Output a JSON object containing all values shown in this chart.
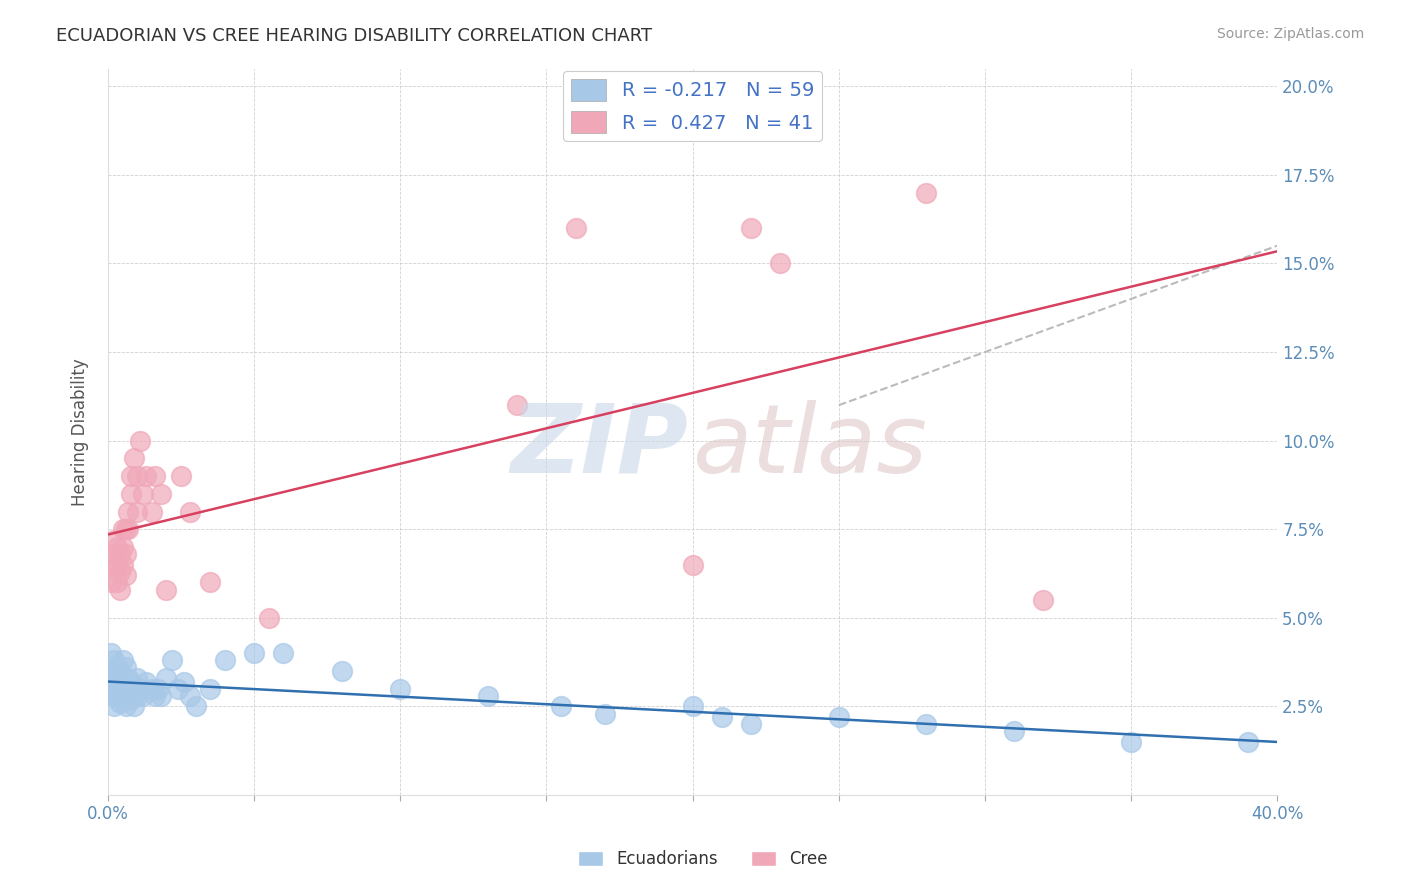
{
  "title": "ECUADORIAN VS CREE HEARING DISABILITY CORRELATION CHART",
  "source": "Source: ZipAtlas.com",
  "ylabel": "Hearing Disability",
  "xlim": [
    0.0,
    0.4
  ],
  "ylim": [
    0.0,
    0.205
  ],
  "xtick_positions": [
    0.0,
    0.05,
    0.1,
    0.15,
    0.2,
    0.25,
    0.3,
    0.35,
    0.4
  ],
  "ytick_positions": [
    0.0,
    0.025,
    0.05,
    0.075,
    0.1,
    0.125,
    0.15,
    0.175,
    0.2
  ],
  "yticklabels_right": [
    "",
    "2.5%",
    "5.0%",
    "7.5%",
    "10.0%",
    "12.5%",
    "15.0%",
    "17.5%",
    "20.0%"
  ],
  "ecuadorian_color": "#A8C8E8",
  "cree_color": "#F0A8B8",
  "ecuadorian_line_color": "#3070B0",
  "cree_line_color": "#D84060",
  "dashed_line_color": "#BBBBBB",
  "legend_label_ecu": "R = -0.217   N = 59",
  "legend_label_cree": "R =  0.427   N = 41",
  "ecuadorian_x": [
    0.001,
    0.001,
    0.001,
    0.002,
    0.002,
    0.002,
    0.002,
    0.003,
    0.003,
    0.003,
    0.003,
    0.004,
    0.004,
    0.004,
    0.004,
    0.005,
    0.005,
    0.005,
    0.006,
    0.006,
    0.006,
    0.007,
    0.007,
    0.008,
    0.008,
    0.009,
    0.009,
    0.01,
    0.01,
    0.011,
    0.012,
    0.013,
    0.015,
    0.016,
    0.017,
    0.018,
    0.02,
    0.022,
    0.024,
    0.026,
    0.028,
    0.03,
    0.035,
    0.04,
    0.05,
    0.06,
    0.08,
    0.1,
    0.13,
    0.155,
    0.17,
    0.2,
    0.21,
    0.22,
    0.25,
    0.28,
    0.31,
    0.35,
    0.39
  ],
  "ecuadorian_y": [
    0.035,
    0.04,
    0.032,
    0.038,
    0.033,
    0.028,
    0.025,
    0.036,
    0.03,
    0.028,
    0.032,
    0.035,
    0.03,
    0.026,
    0.033,
    0.038,
    0.032,
    0.028,
    0.036,
    0.03,
    0.025,
    0.033,
    0.028,
    0.032,
    0.027,
    0.03,
    0.025,
    0.033,
    0.028,
    0.03,
    0.028,
    0.032,
    0.03,
    0.028,
    0.03,
    0.028,
    0.033,
    0.038,
    0.03,
    0.032,
    0.028,
    0.025,
    0.03,
    0.038,
    0.04,
    0.04,
    0.035,
    0.03,
    0.028,
    0.025,
    0.023,
    0.025,
    0.022,
    0.02,
    0.022,
    0.02,
    0.018,
    0.015,
    0.015
  ],
  "cree_x": [
    0.001,
    0.001,
    0.002,
    0.002,
    0.003,
    0.003,
    0.003,
    0.004,
    0.004,
    0.004,
    0.005,
    0.005,
    0.005,
    0.006,
    0.006,
    0.006,
    0.007,
    0.007,
    0.008,
    0.008,
    0.009,
    0.01,
    0.01,
    0.011,
    0.012,
    0.013,
    0.015,
    0.016,
    0.018,
    0.02,
    0.025,
    0.028,
    0.035,
    0.055,
    0.14,
    0.16,
    0.2,
    0.22,
    0.23,
    0.28,
    0.32
  ],
  "cree_y": [
    0.065,
    0.06,
    0.072,
    0.068,
    0.07,
    0.065,
    0.06,
    0.068,
    0.063,
    0.058,
    0.075,
    0.07,
    0.065,
    0.075,
    0.068,
    0.062,
    0.08,
    0.075,
    0.09,
    0.085,
    0.095,
    0.08,
    0.09,
    0.1,
    0.085,
    0.09,
    0.08,
    0.09,
    0.085,
    0.058,
    0.09,
    0.08,
    0.06,
    0.05,
    0.11,
    0.16,
    0.065,
    0.16,
    0.15,
    0.17,
    0.055
  ]
}
